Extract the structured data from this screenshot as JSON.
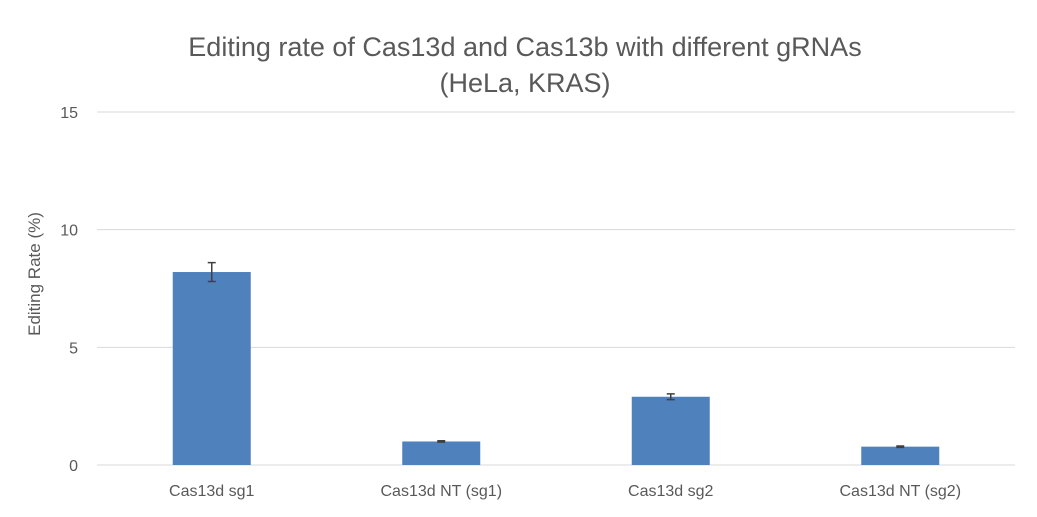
{
  "chart_data": {
    "type": "bar",
    "title": "Editing rate of Cas13d and Cas13b with different gRNAs",
    "subtitle": "(HeLa, KRAS)",
    "xlabel": "",
    "ylabel": "Editing Rate (%)",
    "ylim": [
      0,
      15
    ],
    "yticks": [
      0,
      5,
      10,
      15
    ],
    "grid": true,
    "legend": "none",
    "categories": [
      "Cas13d sg1",
      "Cas13d NT (sg1)",
      "Cas13d sg2",
      "Cas13d NT (sg2)"
    ],
    "series": [
      {
        "values": [
          8.2,
          1.0,
          2.9,
          0.78
        ],
        "errors": [
          0.4,
          0.03,
          0.12,
          0.03
        ],
        "color": "#4f81bd"
      }
    ]
  }
}
